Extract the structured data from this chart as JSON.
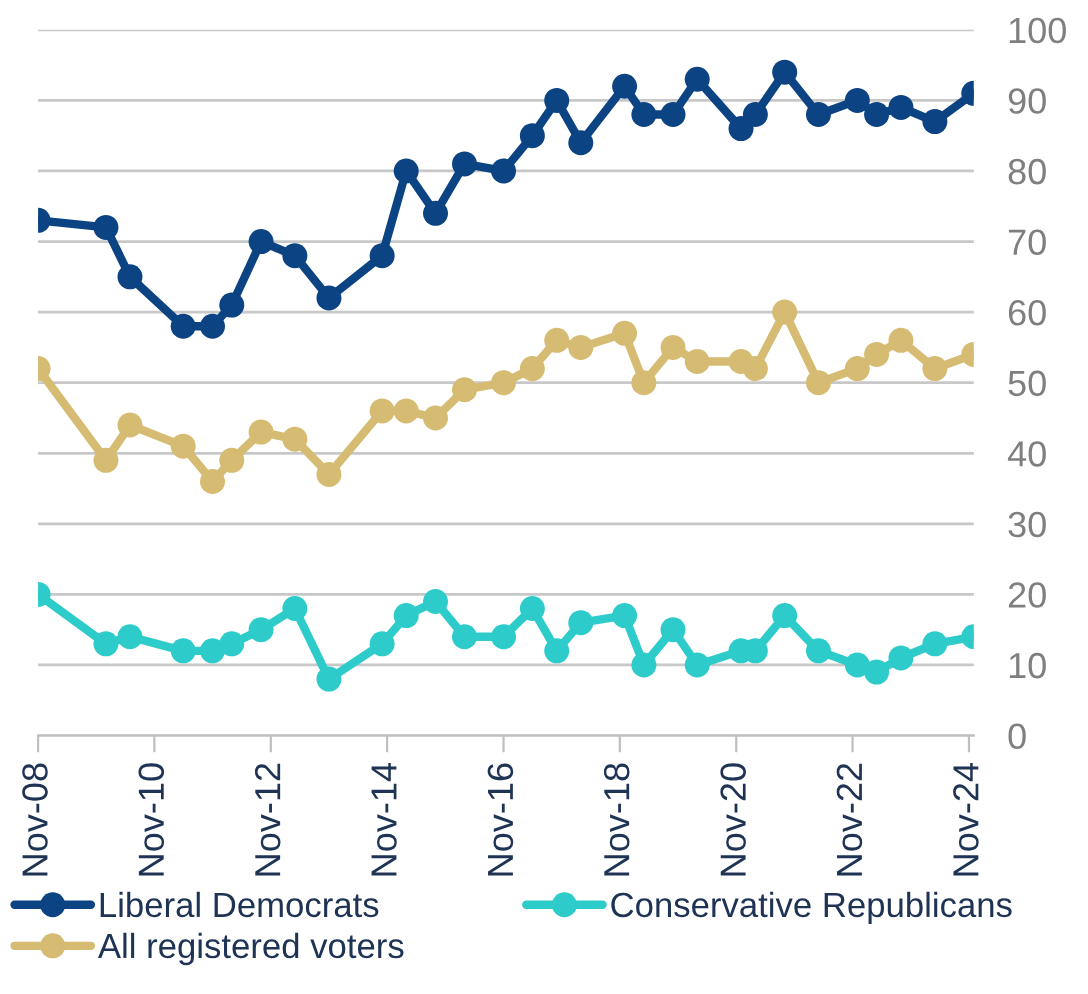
{
  "chart_data": {
    "type": "line",
    "x": [
      "2008-11",
      "2010-01",
      "2010-06",
      "2011-05",
      "2011-11",
      "2012-03",
      "2012-09",
      "2013-04",
      "2013-11",
      "2014-10",
      "2015-03",
      "2015-09",
      "2016-03",
      "2016-11",
      "2017-05",
      "2017-10",
      "2018-03",
      "2018-12",
      "2019-04",
      "2019-10",
      "2020-03",
      "2020-12",
      "2021-03",
      "2021-09",
      "2022-04",
      "2022-12",
      "2023-04",
      "2023-09",
      "2024-04",
      "2024-12"
    ],
    "series": [
      {
        "name": "Liberal Democrats",
        "color": "#0b4383",
        "values": [
          73,
          72,
          65,
          58,
          58,
          61,
          70,
          68,
          62,
          68,
          80,
          74,
          81,
          80,
          85,
          90,
          84,
          92,
          88,
          88,
          93,
          86,
          88,
          94,
          88,
          90,
          88,
          89,
          87,
          91
        ]
      },
      {
        "name": "Conservative Republicans",
        "color": "#2ecbcb",
        "values": [
          20,
          13,
          14,
          12,
          12,
          13,
          15,
          18,
          8,
          13,
          17,
          19,
          14,
          14,
          18,
          12,
          16,
          17,
          10,
          15,
          10,
          12,
          12,
          17,
          12,
          10,
          9,
          11,
          13,
          14
        ]
      },
      {
        "name": "All registered voters",
        "color": "#d6bc72",
        "values": [
          52,
          39,
          44,
          41,
          36,
          39,
          43,
          42,
          37,
          46,
          46,
          45,
          49,
          50,
          52,
          56,
          55,
          57,
          50,
          55,
          53,
          53,
          52,
          60,
          50,
          52,
          54,
          56,
          52,
          54
        ]
      }
    ],
    "xlim": [
      "2008-11",
      "2024-12"
    ],
    "xticks": [
      {
        "value": "2008-11",
        "label": "Nov-08"
      },
      {
        "value": "2010-11",
        "label": "Nov-10"
      },
      {
        "value": "2012-11",
        "label": "Nov-12"
      },
      {
        "value": "2014-11",
        "label": "Nov-14"
      },
      {
        "value": "2016-11",
        "label": "Nov-16"
      },
      {
        "value": "2018-11",
        "label": "Nov-18"
      },
      {
        "value": "2020-11",
        "label": "Nov-20"
      },
      {
        "value": "2022-11",
        "label": "Nov-22"
      },
      {
        "value": "2024-11",
        "label": "Nov-24"
      }
    ],
    "ylim": [
      0,
      100
    ],
    "yticks": [
      0,
      10,
      20,
      30,
      40,
      50,
      60,
      70,
      80,
      90,
      100
    ],
    "grid": "y",
    "legend": "bottom",
    "marker": "circle",
    "line_style": "solid"
  }
}
